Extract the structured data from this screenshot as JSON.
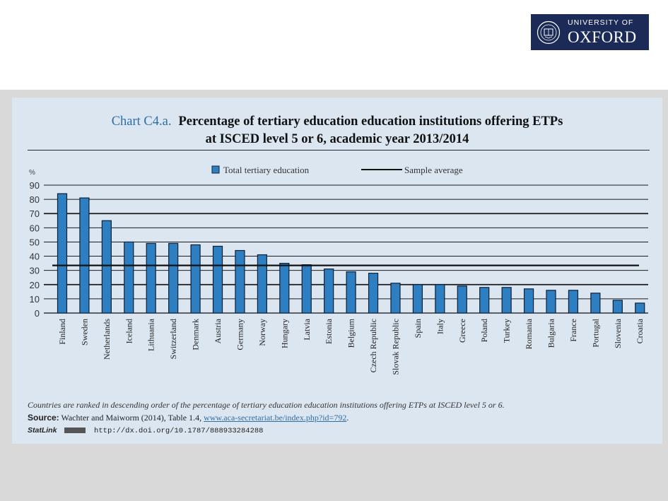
{
  "header": {
    "logo": {
      "line1": "UNIVERSITY OF",
      "line2": "OXFORD",
      "crest_icon": "oxford-crest-icon"
    },
    "colors": {
      "logo_bg": "#1c2a57",
      "panel_bg": "#dce6f1",
      "bar": "#2e7fc1",
      "bar_edge": "#0e2036",
      "accent": "#2e6ea6"
    }
  },
  "chart_meta": {
    "prefix": "Chart C4.a.",
    "title_line1": "Percentage of tertiary education education institutions offering ETPs",
    "title_line2": "at ISCED level 5 or 6, academic year 2013/2014"
  },
  "footnotes": {
    "note": "Countries are ranked in descending order of the percentage of tertiary education education institutions offering ETPs at ISCED level 5 or 6.",
    "source_label": "Source:",
    "source_text": "Wachter and Maiworm (2014), Table 1.4, ",
    "source_link": "www.aca-secretariat.be/index.php?id=792",
    "source_end": ".",
    "statlink_label": "StatLink",
    "statlink_url": "http://dx.doi.org/10.1787/888933284288"
  },
  "chart_data": {
    "type": "bar",
    "title": "Percentage of tertiary education education institutions offering ETPs at ISCED level 5 or 6, academic year 2013/2014",
    "xlabel": "",
    "ylabel": "%",
    "ylim": [
      0,
      90
    ],
    "yticks": [
      0,
      10,
      20,
      30,
      40,
      50,
      60,
      70,
      80,
      90
    ],
    "grid": true,
    "legend": {
      "position": "top-center",
      "entries": [
        "Total tertiary education",
        "Sample average"
      ]
    },
    "categories": [
      "Finland",
      "Sweden",
      "Netherlands",
      "Iceland",
      "Lithuania",
      "Switzerland",
      "Denmark",
      "Austria",
      "Germany",
      "Norway",
      "Hungary",
      "Latvia",
      "Estonia",
      "Belgium",
      "Czech Republic",
      "Slovak Republic",
      "Spain",
      "Italy",
      "Greece",
      "Poland",
      "Turkey",
      "Romania",
      "Bulgaria",
      "France",
      "Portugal",
      "Slovenia",
      "Croatia"
    ],
    "series": [
      {
        "name": "Total tertiary education",
        "values": [
          84,
          81,
          65,
          50,
          49,
          49,
          48,
          47,
          44,
          41,
          35,
          34,
          31,
          29,
          28,
          21,
          20,
          20,
          19,
          18,
          18,
          17,
          16,
          16,
          14,
          9,
          7
        ]
      }
    ],
    "reference_lines": [
      {
        "name": "Sample average",
        "value": 33.5
      }
    ]
  }
}
